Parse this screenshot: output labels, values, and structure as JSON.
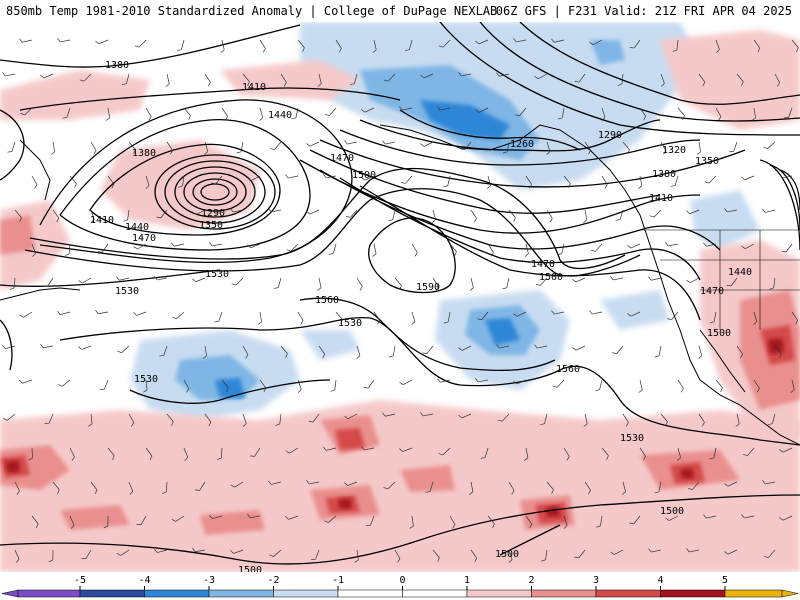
{
  "header": {
    "left_title": "850mb Temp 1981-2010 Standardized Anomaly | College of DuPage NEXLAB",
    "right_title": "06Z GFS | F231 Valid: 21Z FRI APR 04 2025"
  },
  "colors": {
    "neg5": "#7b4ec7",
    "neg4": "#2c4a9e",
    "neg3": "#2f86d6",
    "neg2": "#7fb6e6",
    "neg1": "#c8dcf1",
    "zero": "#ffffff",
    "pos1": "#f5c9c9",
    "pos2": "#e9908f",
    "pos3": "#d44a4a",
    "pos4": "#a3121e",
    "pos5": "#e9b30d",
    "contour": "#000000",
    "coastline": "#000000"
  },
  "colorbar": {
    "ticks": [
      "-5",
      "-4",
      "-3",
      "-2",
      "-1",
      "0",
      "1",
      "2",
      "3",
      "4",
      "5"
    ]
  },
  "contour_labels": [
    "1380",
    "1410",
    "1440",
    "1470",
    "1500",
    "1380",
    "1410",
    "1440",
    "1470",
    "1290",
    "1350",
    "1530",
    "1530",
    "1560",
    "1590",
    "1530",
    "1530",
    "1260",
    "1290",
    "1320",
    "1350",
    "1380",
    "1410",
    "1470",
    "1500",
    "1440",
    "1470",
    "1500",
    "1560",
    "1530",
    "1500",
    "1500",
    "1500"
  ]
}
